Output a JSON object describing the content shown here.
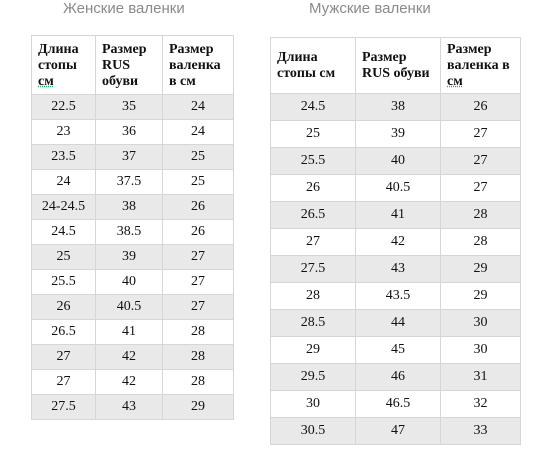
{
  "women": {
    "title": "Женские валенки",
    "headers": {
      "foot_l1": "Длина",
      "foot_l2": "стопы",
      "foot_l3": "см",
      "rus_l1": "Размер",
      "rus_l2": "RUS",
      "rus_l3": "обуви",
      "boot_l1": "Размер",
      "boot_l2": "валенка",
      "boot_l3": "в см"
    },
    "rows": [
      [
        "22.5",
        "35",
        "24"
      ],
      [
        "23",
        "36",
        "24"
      ],
      [
        "23.5",
        "37",
        "25"
      ],
      [
        "24",
        "37.5",
        "25"
      ],
      [
        "24-24.5",
        "38",
        "26"
      ],
      [
        "24.5",
        "38.5",
        "26"
      ],
      [
        "25",
        "39",
        "27"
      ],
      [
        "25.5",
        "40",
        "27"
      ],
      [
        "26",
        "40.5",
        "27"
      ],
      [
        "26.5",
        "41",
        "28"
      ],
      [
        "27",
        "42",
        "28"
      ],
      [
        "27",
        "42",
        "28"
      ],
      [
        "27.5",
        "43",
        "29"
      ]
    ]
  },
  "men": {
    "title": "Мужские валенки",
    "headers": {
      "foot_l1": "Длина",
      "foot_l2": "стопы см",
      "rus_l1": "Размер",
      "rus_l2": "RUS обуви",
      "boot_l1": "Размер",
      "boot_l2": "валенка в",
      "boot_l3": "см"
    },
    "rows": [
      [
        "24.5",
        "38",
        "26"
      ],
      [
        "25",
        "39",
        "27"
      ],
      [
        "25.5",
        "40",
        "27"
      ],
      [
        "26",
        "40.5",
        "27"
      ],
      [
        "26.5",
        "41",
        "28"
      ],
      [
        "27",
        "42",
        "28"
      ],
      [
        "27.5",
        "43",
        "29"
      ],
      [
        "28",
        "43.5",
        "29"
      ],
      [
        "28.5",
        "44",
        "30"
      ],
      [
        "29",
        "45",
        "30"
      ],
      [
        "29.5",
        "46",
        "31"
      ],
      [
        "30",
        "46.5",
        "32"
      ],
      [
        "30.5",
        "47",
        "33"
      ]
    ]
  }
}
